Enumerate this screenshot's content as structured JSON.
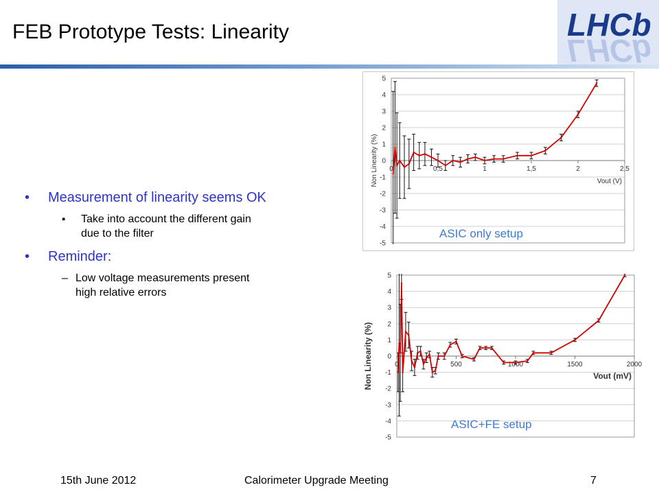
{
  "slide": {
    "title": "FEB Prototype Tests: Linearity",
    "logo_text": "LHCb",
    "bullets": [
      {
        "text": "Measurement of linearity seems OK",
        "sub": [
          "Take into account the different gain",
          "due to the filter"
        ]
      },
      {
        "text": "Reminder:",
        "sub": [
          "Low voltage measurements present",
          "high relative errors"
        ]
      }
    ],
    "footer": {
      "date": "15th June 2012",
      "meeting": "Calorimeter Upgrade Meeting",
      "page": "7"
    },
    "colors": {
      "accent_blue": "#2c35c8",
      "caption_blue": "#3e7bd0",
      "series_red": "#d40000",
      "title_bar": "#2a5fa8"
    }
  },
  "chart_data": [
    {
      "type": "line",
      "caption": "ASIC only setup",
      "xlabel": "Vout (V)",
      "ylabel": "Non Linearity (%)",
      "xlim": [
        0,
        2.5
      ],
      "ylim": [
        -5,
        5
      ],
      "x_ticks": [
        "0",
        "0,5",
        "1",
        "1,5",
        "2",
        "2,5"
      ],
      "y_ticks": [
        "5",
        "4",
        "3",
        "2",
        "1",
        "0",
        "-1",
        "-2",
        "-3",
        "-4",
        "-5"
      ],
      "grid": true,
      "legend": "none",
      "series": [
        {
          "x": [
            0.02,
            0.04,
            0.06,
            0.09,
            0.14,
            0.19,
            0.24,
            0.3,
            0.36,
            0.43,
            0.5,
            0.58,
            0.66,
            0.74,
            0.82,
            0.9,
            1.0,
            1.1,
            1.2,
            1.35,
            1.5,
            1.65,
            1.82,
            2.0,
            2.2
          ],
          "y": [
            -0.8,
            0.8,
            -0.3,
            0.0,
            -0.4,
            -0.2,
            0.5,
            0.3,
            0.4,
            0.2,
            0.0,
            -0.3,
            0.0,
            -0.1,
            0.1,
            0.2,
            0.0,
            0.1,
            0.1,
            0.3,
            0.3,
            0.6,
            1.4,
            2.8,
            4.7
          ],
          "err": [
            5.0,
            4.0,
            3.2,
            2.3,
            1.9,
            1.5,
            1.1,
            0.8,
            0.7,
            0.5,
            0.4,
            0.3,
            0.3,
            0.3,
            0.25,
            0.2,
            0.2,
            0.2,
            0.2,
            0.2,
            0.2,
            0.2,
            0.2,
            0.2,
            0.2
          ]
        }
      ]
    },
    {
      "type": "line",
      "caption": "ASIC+FE setup",
      "xlabel": "Vout (mV)",
      "ylabel": "Non Linearity (%)",
      "xlim": [
        0,
        2000
      ],
      "ylim": [
        -5,
        5
      ],
      "x_ticks": [
        "0",
        "500",
        "1000",
        "1500",
        "2000"
      ],
      "y_ticks": [
        "5",
        "4",
        "3",
        "2",
        "1",
        "0",
        "-1",
        "-2",
        "-3",
        "-4",
        "-5"
      ],
      "grid": true,
      "legend": "none",
      "series": [
        {
          "x": [
            10,
            20,
            30,
            40,
            50,
            75,
            100,
            125,
            150,
            175,
            200,
            225,
            250,
            275,
            300,
            325,
            350,
            400,
            450,
            500,
            550,
            650,
            700,
            750,
            800,
            900,
            1000,
            1100,
            1150,
            1300,
            1500,
            1700,
            1920
          ],
          "y": [
            -1.0,
            0.8,
            0.2,
            4.5,
            -1.0,
            1.5,
            1.3,
            -0.3,
            -0.7,
            0.2,
            0.3,
            -0.5,
            -0.1,
            0.1,
            -1.0,
            -0.9,
            0.0,
            0.0,
            0.7,
            0.9,
            0.0,
            -0.2,
            0.5,
            0.5,
            0.5,
            -0.4,
            -0.4,
            -0.3,
            0.2,
            0.2,
            1.0,
            2.2,
            5.0
          ],
          "err": [
            1.2,
            4.5,
            3.0,
            1.0,
            1.2,
            1.2,
            0.8,
            0.6,
            0.5,
            0.4,
            0.3,
            0.3,
            0.3,
            0.2,
            0.3,
            0.2,
            0.2,
            0.2,
            0.15,
            0.15,
            0.1,
            0.1,
            0.1,
            0.1,
            0.1,
            0.1,
            0.1,
            0.1,
            0.1,
            0.1,
            0.1,
            0.1,
            0.1
          ]
        }
      ]
    }
  ]
}
